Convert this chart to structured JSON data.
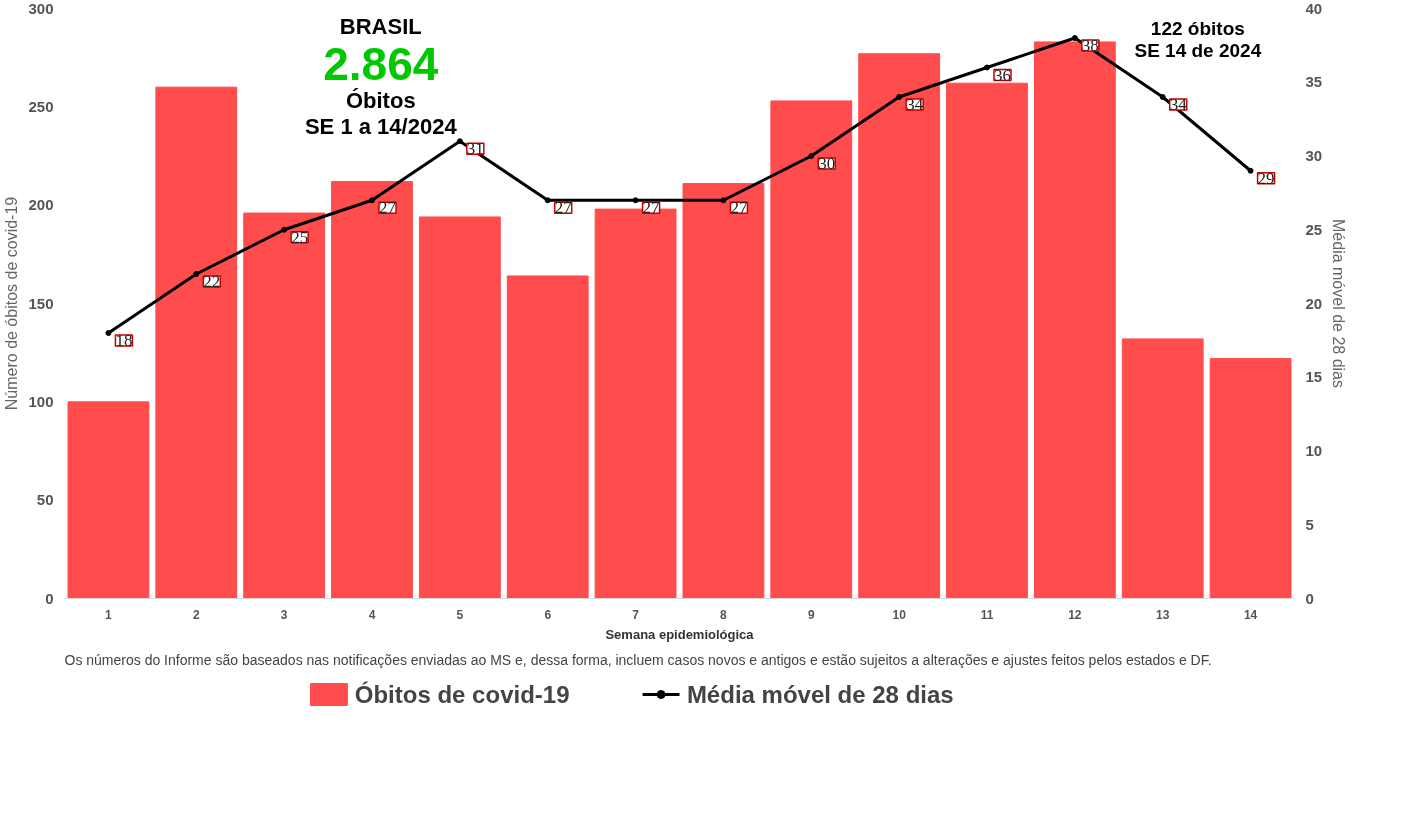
{
  "chart_data": {
    "type": "bar",
    "categories": [
      "1",
      "2",
      "3",
      "4",
      "5",
      "6",
      "7",
      "8",
      "9",
      "10",
      "11",
      "12",
      "13",
      "14"
    ],
    "series": [
      {
        "name": "Óbitos de covid-19",
        "type": "bar",
        "color": "#ff4d4d",
        "values": [
          100,
          260,
          196,
          212,
          194,
          164,
          198,
          211,
          253,
          277,
          262,
          283,
          132,
          122
        ]
      },
      {
        "name": "Média móvel de 28 dias",
        "type": "line",
        "axis": "y2",
        "color": "#000000",
        "marker": "circle",
        "values": [
          18,
          22,
          25,
          27,
          31,
          27,
          27,
          27,
          30,
          34,
          36,
          38,
          34,
          29
        ],
        "value_labels": [
          "18",
          "22",
          "25",
          "27",
          "31",
          "27",
          "27",
          "27",
          "30",
          "34",
          "36",
          "38",
          "34",
          "29"
        ]
      }
    ],
    "xlabel": "Semana epidemiológica",
    "ylabel": "Número de óbitos de covid-19",
    "y2label": "Média móvel de 28 dias",
    "ylim": [
      0,
      300
    ],
    "yticks": [
      0,
      50,
      100,
      150,
      200,
      250,
      300
    ],
    "y2lim": [
      0,
      40
    ],
    "y2ticks": [
      0,
      5,
      10,
      15,
      20,
      25,
      30,
      35,
      40
    ],
    "grid": false,
    "legend": "bottom",
    "annotations": [
      "BRASIL",
      "2.864",
      "Óbitos\nSE 1 a 14/2024",
      "122 óbitos\nSE 14 de 2024",
      "Os números do Informe são baseados nas notificações enviadas ao MS e, dessa forma, incluem casos novos e antigos e estão sujeitos a alterações e ajustes feitos pelos estados e DF."
    ]
  }
}
